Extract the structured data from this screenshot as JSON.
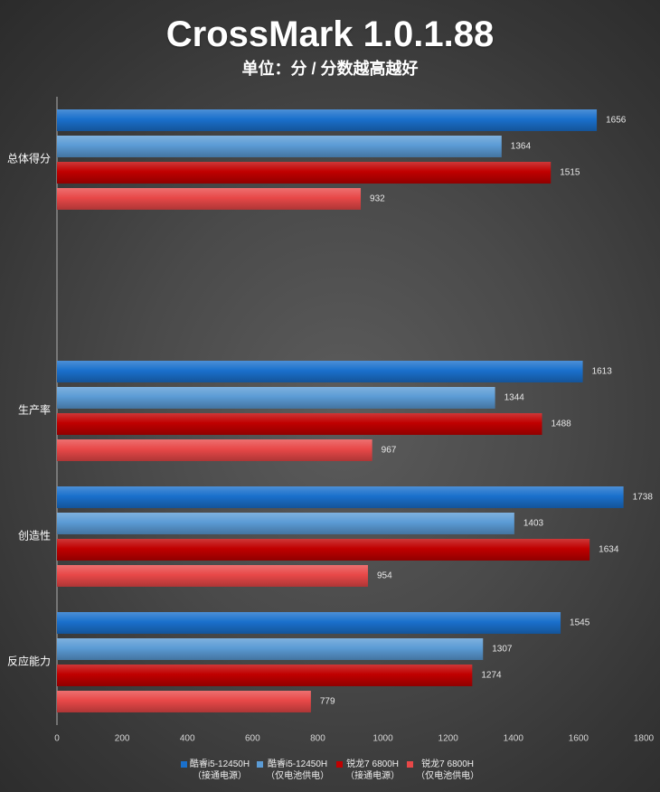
{
  "chart_data": {
    "type": "bar",
    "orientation": "horizontal",
    "title": "CrossMark 1.0.1.88",
    "subtitle": "单位：分 / 分数越高越好",
    "categories": [
      "总体得分",
      "生产率",
      "创造性",
      "反应能力"
    ],
    "series": [
      {
        "name": "酷睿i5-12450H",
        "condition": "（接通电源）",
        "color": "#1a70cc",
        "values": [
          1656,
          1613,
          1738,
          1545
        ]
      },
      {
        "name": "酷睿i5-12450H",
        "condition": "（仅电池供电）",
        "color": "#5b9bd5",
        "values": [
          1364,
          1344,
          1403,
          1307
        ]
      },
      {
        "name": "锐龙7 6800H",
        "condition": "（接通电源）",
        "color": "#c00000",
        "values": [
          1515,
          1488,
          1634,
          1274
        ]
      },
      {
        "name": "锐龙7 6800H",
        "condition": "（仅电池供电）",
        "color": "#e84848",
        "values": [
          932,
          967,
          954,
          779
        ]
      }
    ],
    "xlim": [
      0,
      1800
    ],
    "xticks": [
      0,
      200,
      400,
      600,
      800,
      1000,
      1200,
      1400,
      1600,
      1800
    ],
    "grid": false,
    "legend": "bottom",
    "data_labels": true
  }
}
